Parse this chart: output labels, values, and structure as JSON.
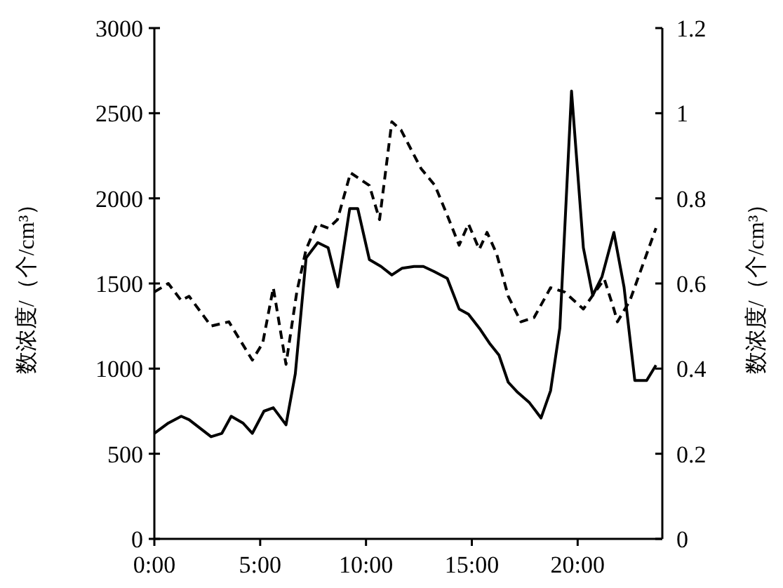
{
  "chart_data": {
    "type": "line",
    "xlabel": null,
    "ylabel": "数浓度/（个/cm³）",
    "y2label": "数浓度/（个/cm³）",
    "xlim": [
      0,
      24
    ],
    "xticks": [
      {
        "value": 0,
        "label": "0:00"
      },
      {
        "value": 5,
        "label": "5:00"
      },
      {
        "value": 10,
        "label": "10:00"
      },
      {
        "value": 15,
        "label": "15:00"
      },
      {
        "value": 20,
        "label": "20:00"
      }
    ],
    "ylim": [
      0,
      3000
    ],
    "yticks": [
      0,
      500,
      1000,
      1500,
      2000,
      2500,
      3000
    ],
    "y2lim": [
      0,
      1.2
    ],
    "y2ticks": [
      0,
      0.2,
      0.4,
      0.6,
      0.8,
      1,
      1.2
    ],
    "grid": false,
    "series": [
      {
        "color": "#000000",
        "line_style": "solid",
        "x": [
          0,
          0.66,
          1.27,
          1.64,
          2.68,
          3.19,
          3.63,
          4.19,
          4.63,
          5.18,
          5.62,
          6.22,
          6.66,
          7.17,
          7.72,
          8.21,
          8.67,
          9.23,
          9.61,
          10.16,
          10.71,
          11.22,
          11.71,
          12.27,
          12.71,
          13.22,
          13.84,
          14.4,
          14.84,
          15.4,
          15.83,
          16.28,
          16.72,
          17.17,
          17.72,
          18.27,
          18.72,
          19.16,
          19.71,
          20.27,
          20.71,
          21.15,
          21.71,
          22.19,
          22.7,
          23.26,
          23.7
        ],
        "values": [
          620,
          680,
          720,
          700,
          600,
          620,
          720,
          680,
          620,
          750,
          770,
          670,
          970,
          1650,
          1740,
          1710,
          1480,
          1940,
          1940,
          1640,
          1600,
          1550,
          1590,
          1600,
          1600,
          1570,
          1530,
          1350,
          1320,
          1230,
          1150,
          1080,
          920,
          860,
          800,
          710,
          870,
          1240,
          2630,
          1710,
          1430,
          1540,
          1800,
          1480,
          930,
          930,
          1020
        ]
      },
      {
        "color": "#000000",
        "line_style": "dashed",
        "axis": "y2",
        "x": [
          0,
          0.66,
          1.27,
          1.64,
          2.68,
          3.52,
          4.63,
          5.12,
          5.62,
          6.22,
          6.73,
          7.17,
          7.68,
          8.23,
          8.65,
          9.27,
          10.16,
          10.64,
          11.22,
          11.66,
          12.6,
          13.26,
          13.84,
          14.4,
          14.84,
          15.35,
          15.72,
          16.17,
          16.72,
          17.32,
          17.94,
          18.72,
          19.38,
          20.27,
          20.82,
          21.26,
          21.71,
          21.88,
          22.47,
          23.7
        ],
        "values": [
          0.58,
          0.6,
          0.56,
          0.57,
          0.5,
          0.51,
          0.42,
          0.46,
          0.59,
          0.41,
          0.58,
          0.68,
          0.74,
          0.73,
          0.75,
          0.86,
          0.83,
          0.75,
          0.98,
          0.96,
          0.87,
          0.83,
          0.76,
          0.69,
          0.74,
          0.68,
          0.72,
          0.67,
          0.57,
          0.51,
          0.52,
          0.59,
          0.58,
          0.54,
          0.58,
          0.61,
          0.54,
          0.51,
          0.56,
          0.73
        ]
      }
    ]
  }
}
